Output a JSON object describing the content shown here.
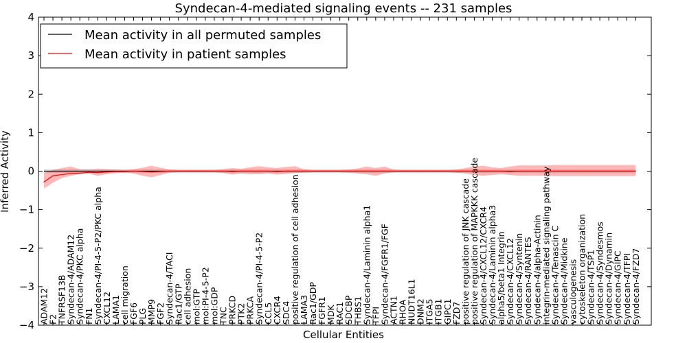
{
  "chart_data": {
    "type": "line",
    "title": "Syndecan-4-mediated signaling events -- 231 samples",
    "xlabel": "Cellular Entities",
    "ylabel": "Inferred Activity",
    "ylim": [
      -4,
      4
    ],
    "yticks": [
      "-4",
      "-3",
      "-2",
      "-1",
      "0",
      "1",
      "2",
      "3",
      "4"
    ],
    "legend": {
      "placement": "top-left",
      "entries": [
        {
          "label": "Mean activity in all permuted samples",
          "color": "#000000"
        },
        {
          "label": "Mean activity in patient samples",
          "color": "#ff0000"
        }
      ]
    },
    "categories": [
      "ADAM12",
      "F2",
      "TNFRSF13B",
      "Syndecan-4/ADAM12",
      "Syndecan-4/PKC alpha",
      "FN1",
      "Syndecan-4/PI-4-5-P2/PKC alpha",
      "CXCL12",
      "LAMA1",
      "cell migration",
      "FGF6",
      "PLG",
      "MMP9",
      "FGF2",
      "Syndecan-4/TACI",
      "Rac1/GTP",
      "cell adhesion",
      "mol:GTP",
      "mol:PI-4-5-P2",
      "mol:GDP",
      "TNC",
      "PRKCD",
      "PTK2",
      "PRKCA",
      "Syndecan-4/PI-4-5-P2",
      "CCL5",
      "CXCR4",
      "SDC4",
      "positive regulation of cell adhesion",
      "LAMA3",
      "Rac1/GDP",
      "FGFR1",
      "MDK",
      "RAC1",
      "SDCBP",
      "THBS1",
      "Syndecan-4/Laminin alpha1",
      "TFPI",
      "Syndecan-4/FGFR1/FGF",
      "ACTN1",
      "RHOA",
      "NUDT16L1",
      "DNM2",
      "ITGA5",
      "ITGB1",
      "GIPC1",
      "FZD7",
      "positive regulation of JNK cascade",
      "positive regulation of MAPKKK cascade",
      "Syndecan-4/CXCL12/CXCR4",
      "Syndecan-4/Laminin alpha3",
      "alpha5/beta1 Integrin",
      "Syndecan-4/CXCL12",
      "Syndecan-4/Syntenin",
      "Syndecan-4/RANTES",
      "Syndecan-4/alpha-Actinin",
      "integrin-mediated signaling pathway",
      "Syndecan-4/Tenascin C",
      "Syndecan-4/Midkine",
      "vasculogenesis",
      "cytoskeleton organization",
      "Syndecan-4/TSP1",
      "Syndecan-4/Syndesmos",
      "Syndecan-4/Dynamin",
      "Syndecan-4/GIPC",
      "Syndecan-4/TFPI",
      "Syndecan-4/FZD7"
    ],
    "series": [
      {
        "name": "Mean activity in patient samples",
        "color": "#ff0000",
        "values": [
          -0.28,
          -0.12,
          -0.09,
          -0.06,
          -0.05,
          -0.03,
          -0.04,
          -0.02,
          -0.01,
          -0.01,
          0.0,
          -0.01,
          -0.02,
          -0.01,
          0.0,
          0.0,
          0.0,
          0.0,
          0.0,
          0.0,
          0.0,
          -0.01,
          0.0,
          0.0,
          0.0,
          0.0,
          -0.01,
          0.0,
          0.0,
          0.0,
          0.0,
          0.0,
          0.0,
          0.0,
          0.0,
          0.0,
          0.0,
          0.0,
          0.0,
          0.0,
          0.0,
          0.0,
          0.0,
          0.0,
          0.0,
          0.0,
          0.0,
          0.0,
          0.0,
          0.0,
          0.0,
          0.0,
          -0.01,
          0.0,
          0.0,
          0.0,
          0.0,
          0.0,
          0.0,
          0.0,
          0.0,
          0.0,
          0.0,
          0.0,
          0.0,
          0.0,
          0.0
        ],
        "lower": [
          -0.45,
          -0.3,
          -0.18,
          -0.12,
          -0.08,
          -0.07,
          -0.12,
          -0.08,
          -0.05,
          -0.04,
          -0.06,
          -0.12,
          -0.16,
          -0.1,
          -0.04,
          -0.03,
          -0.03,
          -0.03,
          -0.03,
          -0.03,
          -0.05,
          -0.09,
          -0.06,
          -0.08,
          -0.08,
          -0.06,
          -0.09,
          -0.07,
          -0.05,
          -0.04,
          -0.03,
          -0.03,
          -0.03,
          -0.03,
          -0.04,
          -0.06,
          -0.08,
          -0.12,
          -0.06,
          -0.03,
          -0.03,
          -0.03,
          -0.03,
          -0.03,
          -0.03,
          -0.03,
          -0.04,
          -0.06,
          -0.1,
          -0.12,
          -0.1,
          -0.08,
          -0.1,
          -0.12,
          -0.12,
          -0.12,
          -0.12,
          -0.13,
          -0.13,
          -0.13,
          -0.13,
          -0.13,
          -0.13,
          -0.13,
          -0.13,
          -0.13,
          -0.13
        ],
        "upper": [
          -0.05,
          0.03,
          0.08,
          0.12,
          0.05,
          0.04,
          0.06,
          0.05,
          0.04,
          0.03,
          0.05,
          0.09,
          0.14,
          0.09,
          0.04,
          0.03,
          0.03,
          0.03,
          0.03,
          0.03,
          0.05,
          0.08,
          0.06,
          0.1,
          0.13,
          0.1,
          0.08,
          0.11,
          0.13,
          0.05,
          0.03,
          0.03,
          0.03,
          0.03,
          0.04,
          0.07,
          0.12,
          0.08,
          0.12,
          0.04,
          0.03,
          0.03,
          0.03,
          0.03,
          0.03,
          0.03,
          0.04,
          0.08,
          0.12,
          0.14,
          0.1,
          0.08,
          0.12,
          0.15,
          0.15,
          0.15,
          0.15,
          0.16,
          0.16,
          0.16,
          0.16,
          0.16,
          0.16,
          0.16,
          0.16,
          0.16,
          0.16
        ]
      },
      {
        "name": "Mean activity in all permuted samples",
        "color": "#000000",
        "values": [
          0.0,
          0.0,
          0.0,
          0.0,
          0.0,
          0.0,
          0.0,
          0.0,
          0.0,
          0.0,
          0.0,
          0.0,
          0.0,
          0.0,
          0.0,
          0.0,
          0.0,
          0.0,
          0.0,
          0.0,
          0.0,
          0.0,
          0.0,
          0.0,
          0.0,
          0.0,
          0.0,
          0.0,
          0.0,
          0.0,
          0.0,
          0.0,
          0.0,
          0.0,
          0.0,
          0.0,
          0.0,
          0.0,
          0.0,
          0.0,
          0.0,
          0.0,
          0.0,
          0.0,
          0.0,
          0.0,
          0.0,
          0.0,
          0.0,
          0.0,
          0.0,
          0.0,
          0.0,
          0.0,
          0.0,
          0.0,
          0.0,
          0.0,
          0.0,
          0.0,
          0.0,
          0.0,
          0.0,
          0.0,
          0.0,
          0.0,
          0.0
        ],
        "band": 0.05
      }
    ]
  }
}
